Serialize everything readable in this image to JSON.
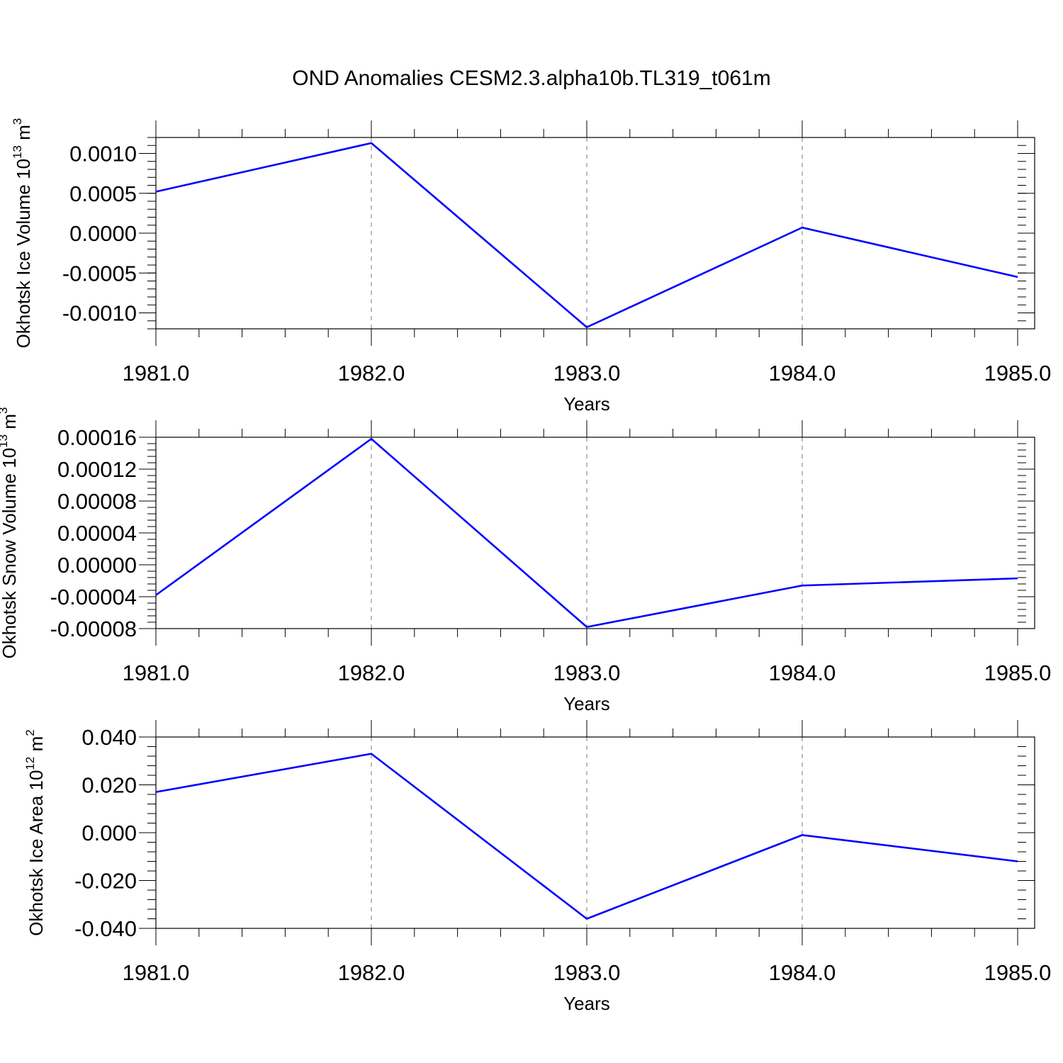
{
  "title": "OND Anomalies CESM2.3.alpha10b.TL319_t061m",
  "colors": {
    "line": "#0000ff",
    "grid": "#999999"
  },
  "chart_data": [
    {
      "type": "line",
      "ylabel": "Okhotsk Ice Volume 10",
      "ylabel_sup": "13",
      "ylabel_unit": " m",
      "ylabel_unit_sup": "3",
      "xlabel": "Years",
      "xlim": [
        1981.0,
        1985.0
      ],
      "ylim": [
        -0.0012,
        0.0012
      ],
      "x_ticks": [
        "1981.0",
        "1982.0",
        "1983.0",
        "1984.0",
        "1985.0"
      ],
      "y_ticks": [
        {
          "v": 0.001,
          "label": "0.0010"
        },
        {
          "v": 0.0005,
          "label": "0.0005"
        },
        {
          "v": 0.0,
          "label": "0.0000"
        },
        {
          "v": -0.0005,
          "label": "-0.0005"
        },
        {
          "v": -0.001,
          "label": "-0.0010"
        }
      ],
      "x": [
        1981,
        1982,
        1983,
        1984,
        1985
      ],
      "values": [
        0.00052,
        0.00113,
        -0.00118,
        7e-05,
        -0.00055
      ]
    },
    {
      "type": "line",
      "ylabel": "Okhotsk Snow Volume 10",
      "ylabel_sup": "13",
      "ylabel_unit": " m",
      "ylabel_unit_sup": "3",
      "xlabel": "Years",
      "xlim": [
        1981.0,
        1985.0
      ],
      "ylim": [
        -8e-05,
        0.00016
      ],
      "x_ticks": [
        "1981.0",
        "1982.0",
        "1983.0",
        "1984.0",
        "1985.0"
      ],
      "y_ticks": [
        {
          "v": 0.00016,
          "label": "0.00016"
        },
        {
          "v": 0.00012,
          "label": "0.00012"
        },
        {
          "v": 8e-05,
          "label": "0.00008"
        },
        {
          "v": 4e-05,
          "label": "0.00004"
        },
        {
          "v": 0.0,
          "label": "0.00000"
        },
        {
          "v": -4e-05,
          "label": "-0.00004"
        },
        {
          "v": -8e-05,
          "label": "-0.00008"
        }
      ],
      "x": [
        1981,
        1982,
        1983,
        1984,
        1985
      ],
      "values": [
        -3.8e-05,
        0.000158,
        -7.8e-05,
        -2.6e-05,
        -1.7e-05
      ]
    },
    {
      "type": "line",
      "ylabel": "Okhotsk Ice Area 10",
      "ylabel_sup": "12",
      "ylabel_unit": " m",
      "ylabel_unit_sup": "2",
      "xlabel": "Years",
      "xlim": [
        1981.0,
        1985.0
      ],
      "ylim": [
        -0.04,
        0.04
      ],
      "x_ticks": [
        "1981.0",
        "1982.0",
        "1983.0",
        "1984.0",
        "1985.0"
      ],
      "y_ticks": [
        {
          "v": 0.04,
          "label": "0.040"
        },
        {
          "v": 0.02,
          "label": "0.020"
        },
        {
          "v": 0.0,
          "label": "0.000"
        },
        {
          "v": -0.02,
          "label": "-0.020"
        },
        {
          "v": -0.04,
          "label": "-0.040"
        }
      ],
      "x": [
        1981,
        1982,
        1983,
        1984,
        1985
      ],
      "values": [
        0.017,
        0.033,
        -0.036,
        -0.001,
        -0.012
      ]
    }
  ]
}
